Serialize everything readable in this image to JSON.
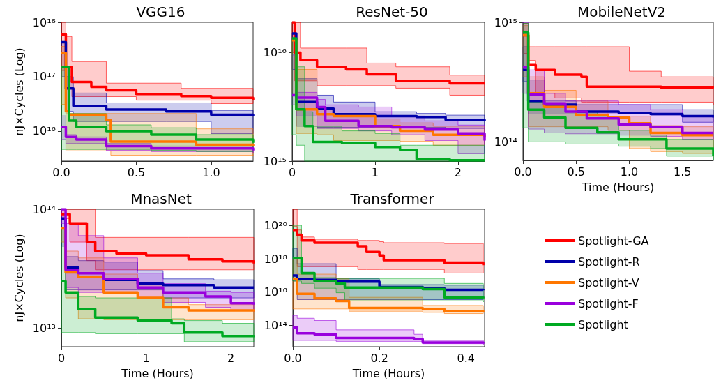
{
  "chart_data": [
    {
      "type": "step",
      "title": "VGG16",
      "ylabel": "nJ×Cycles (Log)",
      "log": true,
      "xlim": [
        0,
        1.28
      ],
      "xticks": [
        {
          "value": 0,
          "label": "0.0"
        },
        {
          "value": 0.5,
          "label": "0.5"
        },
        {
          "value": 1,
          "label": "1.0"
        }
      ],
      "ylim": [
        2800000000000000.0,
        1e+18
      ],
      "yticks": [
        {
          "value": 1e+16,
          "label": "10¹⁶"
        },
        {
          "value": 1e+17,
          "label": "10¹⁷"
        },
        {
          "value": 1e+18,
          "label": "10¹⁸"
        }
      ],
      "series": [
        {
          "color": "#ff0000",
          "x": [
            0,
            0.03,
            0.07,
            0.2,
            0.3,
            0.5,
            0.8,
            1.0,
            1.28
          ],
          "values": [
            6e+17,
            1.5e+17,
            8e+16,
            6.5e+16,
            5.6e+16,
            4.8e+16,
            4.4e+16,
            4.1e+16,
            3.7e+16
          ],
          "upper": [
            1e+18,
            5.5e+17,
            1.9e+17,
            1.9e+17,
            7.6e+16,
            7.6e+16,
            6.1e+16,
            6.1e+16,
            5.8e+16
          ],
          "lower": [
            1.3e+17,
            6.1e+16,
            4.3e+16,
            4.3e+16,
            4.3e+16,
            3.7e+16,
            3.7e+16,
            3.2e+16,
            3.2e+16
          ]
        },
        {
          "color": "#0000aa",
          "x": [
            0,
            0.03,
            0.08,
            0.3,
            0.7,
            1.0,
            1.28
          ],
          "values": [
            4.3e+17,
            6.1e+16,
            2.9e+16,
            2.5e+16,
            2.3e+16,
            2e+16,
            1.9e+16
          ],
          "upper": [
            4.3e+17,
            1e+17,
            5e+16,
            3.3e+16,
            3.3e+16,
            2.4e+16,
            2.4e+16
          ],
          "lower": [
            1e+17,
            2.3e+16,
            1.5e+16,
            1.5e+16,
            1.5e+16,
            9000000000000000.0,
            9000000000000000.0
          ]
        },
        {
          "color": "#ff7700",
          "x": [
            0,
            0.03,
            0.05,
            0.3,
            0.33,
            0.9,
            1.28
          ],
          "values": [
            2.7e+17,
            2.3e+16,
            2e+16,
            1.6e+16,
            6400000000000000.0,
            5600000000000000.0,
            5300000000000000.0
          ],
          "upper": [
            3.6e+17,
            2.1e+16,
            2.1e+16,
            2.1e+16,
            2.1e+16,
            1.1e+16,
            1.1e+16
          ],
          "lower": [
            3.1e+16,
            4300000000000000.0,
            4300000000000000.0,
            4300000000000000.0,
            3600000000000000.0,
            3600000000000000.0,
            3500000000000000.0
          ]
        },
        {
          "color": "#9900dd",
          "x": [
            0,
            0.03,
            0.1,
            0.3,
            0.6,
            1.28
          ],
          "values": [
            1.2e+16,
            7800000000000000.0,
            7000000000000000.0,
            5300000000000000.0,
            4800000000000000.0,
            4400000000000000.0
          ],
          "upper": [
            1.9e+16,
            8600000000000000.0,
            7800000000000000.0,
            5900000000000000.0,
            5300000000000000.0,
            4800000000000000.0
          ],
          "lower": [
            7000000000000000.0,
            5900000000000000.0,
            5900000000000000.0,
            4400000000000000.0,
            4200000000000000.0,
            4000000000000000.0
          ]
        },
        {
          "color": "#00aa22",
          "x": [
            0,
            0.05,
            0.1,
            0.3,
            0.6,
            0.9,
            1.28
          ],
          "values": [
            1.5e+17,
            1.55e+16,
            1.2e+16,
            1e+16,
            8600000000000000.0,
            7000000000000000.0,
            6100000000000000.0
          ],
          "upper": [
            1.55e+17,
            2.1e+16,
            2.1e+16,
            1.3e+16,
            1.15e+16,
            8600000000000000.0,
            7000000000000000.0
          ],
          "lower": [
            4600000000000000.0,
            4600000000000000.0,
            4600000000000000.0,
            4600000000000000.0,
            4400000000000000.0,
            4200000000000000.0,
            4200000000000000.0
          ]
        }
      ]
    },
    {
      "type": "step",
      "title": "ResNet-50",
      "log": true,
      "xlim": [
        0,
        2.32
      ],
      "xticks": [
        0,
        1,
        2
      ],
      "ylim": [
        1000000000000000.0,
        1.9e+16
      ],
      "yticks": [
        {
          "value": 1000000000000000.0,
          "label": "10¹⁵"
        },
        {
          "value": 1e+16,
          "label": "10¹⁶"
        }
      ],
      "series": [
        {
          "color": "#ff0000",
          "x": [
            0,
            0.03,
            0.1,
            0.3,
            0.65,
            0.9,
            1.25,
            1.9,
            2.32
          ],
          "values": [
            1.9e+16,
            1e+16,
            8500000000000000.0,
            7400000000000000.0,
            7000000000000000.0,
            6300000000000000.0,
            5500000000000000.0,
            5200000000000000.0,
            5200000000000000.0
          ],
          "upper": [
            1.9e+16,
            1.9e+16,
            1.1e+16,
            1.1e+16,
            1.1e+16,
            8000000000000000.0,
            7400000000000000.0,
            6200000000000000.0,
            6200000000000000.0
          ],
          "lower": [
            1e+16,
            5500000000000000.0,
            5500000000000000.0,
            4950000000000000.0,
            4950000000000000.0,
            4950000000000000.0,
            4700000000000000.0,
            4050000000000000.0,
            4050000000000000.0
          ]
        },
        {
          "color": "#0000aa",
          "x": [
            0,
            0.05,
            0.3,
            0.5,
            1,
            1.5,
            1.85,
            2.32
          ],
          "values": [
            1.5e+16,
            3500000000000000.0,
            3050000000000000.0,
            2700000000000000.0,
            2600000000000000.0,
            2550000000000000.0,
            2400000000000000.0,
            2350000000000000.0
          ],
          "upper": [
            1.5e+16,
            5750000000000000.0,
            4050000000000000.0,
            3500000000000000.0,
            2850000000000000.0,
            2750000000000000.0,
            2650000000000000.0,
            2650000000000000.0
          ],
          "lower": [
            7000000000000000.0,
            2100000000000000.0,
            2050000000000000.0,
            2050000000000000.0,
            2050000000000000.0,
            2050000000000000.0,
            2000000000000000.0,
            1170000000000000.0
          ]
        },
        {
          "color": "#ff7700",
          "x": [
            0,
            0.05,
            0.3,
            0.5,
            1,
            1.3,
            1.7,
            2.32
          ],
          "values": [
            1.3e+16,
            3000000000000000.0,
            2700000000000000.0,
            2600000000000000.0,
            2100000000000000.0,
            1900000000000000.0,
            1750000000000000.0,
            1650000000000000.0
          ],
          "upper": [
            1.3e+16,
            7000000000000000.0,
            3000000000000000.0,
            2600000000000000.0,
            2450000000000000.0,
            2250000000000000.0,
            2100000000000000.0,
            1900000000000000.0
          ],
          "lower": [
            4200000000000000.0,
            1800000000000000.0,
            1750000000000000.0,
            1550000000000000.0,
            1550000000000000.0,
            1520000000000000.0,
            1400000000000000.0,
            1400000000000000.0
          ]
        },
        {
          "color": "#9900dd",
          "x": [
            0,
            0.05,
            0.3,
            0.4,
            0.8,
            1.2,
            1.6,
            2.0,
            2.32
          ],
          "values": [
            4050000000000000.0,
            3850000000000000.0,
            3150000000000000.0,
            2350000000000000.0,
            2100000000000000.0,
            2050000000000000.0,
            1950000000000000.0,
            1800000000000000.0,
            1550000000000000.0
          ],
          "upper": [
            9500000000000000.0,
            4300000000000000.0,
            3700000000000000.0,
            3300000000000000.0,
            3150000000000000.0,
            2600000000000000.0,
            2350000000000000.0,
            2150000000000000.0,
            2050000000000000.0
          ],
          "lower": [
            3300000000000000.0,
            2600000000000000.0,
            2000000000000000.0,
            2000000000000000.0,
            1900000000000000.0,
            1750000000000000.0,
            1550000000000000.0,
            1170000000000000.0,
            1170000000000000.0
          ]
        },
        {
          "color": "#00aa22",
          "x": [
            0,
            0.05,
            0.15,
            0.25,
            0.6,
            1.0,
            1.3,
            1.5,
            1.9,
            2.32
          ],
          "values": [
            1.35e+16,
            3000000000000000.0,
            2100000000000000.0,
            1500000000000000.0,
            1470000000000000.0,
            1350000000000000.0,
            1270000000000000.0,
            1040000000000000.0,
            1020000000000000.0,
            1020000000000000.0
          ],
          "upper": [
            1.35e+16,
            7400000000000000.0,
            2850000000000000.0,
            2100000000000000.0,
            1900000000000000.0,
            1800000000000000.0,
            1400000000000000.0,
            1400000000000000.0,
            1400000000000000.0,
            1400000000000000.0
          ],
          "lower": [
            1750000000000000.0,
            1400000000000000.0,
            1000000000000000.0,
            1000000000000000.0,
            1000000000000000.0,
            1000000000000000.0,
            1000000000000000.0,
            1000000000000000.0,
            1000000000000000.0,
            1000000000000000.0
          ]
        }
      ]
    },
    {
      "type": "step",
      "title": "MobileNetV2",
      "xlabel": "Time (Hours)",
      "log": true,
      "xlim": [
        0,
        1.79
      ],
      "xticks": [
        {
          "value": 0,
          "label": "0.0"
        },
        {
          "value": 0.5,
          "label": "0.5"
        },
        {
          "value": 1,
          "label": "1.0"
        },
        {
          "value": 1.5,
          "label": "1.5"
        }
      ],
      "ylim": [
        70000000000000.0,
        1000000000000000.0
      ],
      "yticks": [
        {
          "value": 100000000000000.0,
          "label": "10¹⁴"
        },
        {
          "value": 1000000000000000.0,
          "label": "10¹⁵"
        }
      ],
      "series": [
        {
          "color": "#ff0000",
          "x": [
            0,
            0.05,
            0.12,
            0.3,
            0.55,
            0.6,
            1.0,
            1.3,
            1.79
          ],
          "values": [
            780000000000000.0,
            440000000000000.0,
            400000000000000.0,
            365000000000000.0,
            350000000000000.0,
            290000000000000.0,
            290000000000000.0,
            285000000000000.0,
            280000000000000.0
          ],
          "upper": [
            980000000000000.0,
            625000000000000.0,
            625000000000000.0,
            625000000000000.0,
            625000000000000.0,
            625000000000000.0,
            390000000000000.0,
            350000000000000.0,
            350000000000000.0
          ],
          "lower": [
            550000000000000.0,
            480000000000000.0,
            255000000000000.0,
            233000000000000.0,
            215000000000000.0,
            215000000000000.0,
            215000000000000.0,
            215000000000000.0,
            205000000000000.0
          ]
        },
        {
          "color": "#0000aa",
          "x": [
            0,
            0.05,
            0.2,
            0.5,
            0.9,
            1.2,
            1.5,
            1.79
          ],
          "values": [
            400000000000000.0,
            220000000000000.0,
            205000000000000.0,
            179000000000000.0,
            175000000000000.0,
            171000000000000.0,
            164000000000000.0,
            160000000000000.0
          ],
          "upper": [
            625000000000000.0,
            330000000000000.0,
            220000000000000.0,
            205000000000000.0,
            205000000000000.0,
            205000000000000.0,
            186000000000000.0,
            171000000000000.0
          ],
          "lower": [
            320000000000000.0,
            171000000000000.0,
            171000000000000.0,
            171000000000000.0,
            171000000000000.0,
            168000000000000.0,
            146000000000000.0,
            146000000000000.0
          ]
        },
        {
          "color": "#ff7700",
          "x": [
            0,
            0.05,
            0.2,
            0.5,
            0.8,
            1.0,
            1.2,
            1.5,
            1.79
          ],
          "values": [
            780000000000000.0,
            255000000000000.0,
            196000000000000.0,
            167000000000000.0,
            160000000000000.0,
            143000000000000.0,
            119000000000000.0,
            114000000000000.0,
            113000000000000.0
          ],
          "upper": [
            940000000000000.0,
            350000000000000.0,
            270000000000000.0,
            220000000000000.0,
            164000000000000.0,
            164000000000000.0,
            137000000000000.0,
            134000000000000.0,
            134000000000000.0
          ],
          "lower": [
            350000000000000.0,
            134000000000000.0,
            134000000000000.0,
            134000000000000.0,
            125000000000000.0,
            88000000000000.0,
            83000000000000.0,
            80000000000000.0,
            80000000000000.0
          ]
        },
        {
          "color": "#9900dd",
          "x": [
            0,
            0.05,
            0.2,
            0.4,
            0.6,
            0.9,
            1.2,
            1.5,
            1.79
          ],
          "values": [
            420000000000000.0,
            250000000000000.0,
            210000000000000.0,
            179000000000000.0,
            157000000000000.0,
            140000000000000.0,
            133000000000000.0,
            119000000000000.0,
            119000000000000.0
          ],
          "upper": [
            1000000000000000.0,
            400000000000000.0,
            255000000000000.0,
            220000000000000.0,
            220000000000000.0,
            205000000000000.0,
            186000000000000.0,
            164000000000000.0,
            143000000000000.0
          ],
          "lower": [
            255000000000000.0,
            128000000000000.0,
            119000000000000.0,
            117000000000000.0,
            117000000000000.0,
            114000000000000.0,
            111000000000000.0,
            105000000000000.0,
            105000000000000.0
          ]
        },
        {
          "color": "#00aa22",
          "x": [
            0,
            0.05,
            0.2,
            0.4,
            0.7,
            0.9,
            1.2,
            1.35,
            1.79
          ],
          "values": [
            820000000000000.0,
            186000000000000.0,
            160000000000000.0,
            131000000000000.0,
            120000000000000.0,
            105000000000000.0,
            105000000000000.0,
            88000000000000.0,
            76000000000000.0
          ],
          "upper": [
            980000000000000.0,
            215000000000000.0,
            196000000000000.0,
            179000000000000.0,
            164000000000000.0,
            125000000000000.0,
            114000000000000.0,
            105000000000000.0,
            105000000000000.0
          ],
          "lower": [
            131000000000000.0,
            100000000000000.0,
            100000000000000.0,
            96000000000000.0,
            96000000000000.0,
            92000000000000.0,
            88000000000000.0,
            76000000000000.0,
            70000000000000.0
          ]
        }
      ]
    },
    {
      "type": "step",
      "title": "MnasNet",
      "xlabel": "Time (Hours)",
      "ylabel": "nJ×Cycles (Log)",
      "log": true,
      "xlim": [
        0,
        2.27
      ],
      "xticks": [
        0,
        1,
        2
      ],
      "ylim": [
        7000000000000.0,
        100000000000000.0
      ],
      "yticks": [
        {
          "value": 10000000000000.0,
          "label": "10¹³"
        },
        {
          "value": 100000000000000.0,
          "label": "10¹⁴"
        }
      ],
      "series": [
        {
          "color": "#ff0000",
          "x": [
            0,
            0.1,
            0.3,
            0.4,
            0.65,
            1.0,
            1.5,
            1.9,
            2.27
          ],
          "values": [
            91000000000000.0,
            76000000000000.0,
            53000000000000.0,
            44500000000000.0,
            42500000000000.0,
            41000000000000.0,
            38000000000000.0,
            36500000000000.0,
            35000000000000.0
          ],
          "upper": [
            100000000000000.0,
            100000000000000.0,
            100000000000000.0,
            58000000000000.0,
            58000000000000.0,
            58000000000000.0,
            58000000000000.0,
            58000000000000.0,
            58000000000000.0
          ],
          "lower": [
            83500000000000.0,
            53000000000000.0,
            37000000000000.0,
            31000000000000.0,
            31000000000000.0,
            31000000000000.0,
            31000000000000.0,
            31000000000000.0,
            31000000000000.0
          ]
        },
        {
          "color": "#0000aa",
          "x": [
            0,
            0.05,
            0.2,
            0.5,
            0.9,
            1.2,
            1.8,
            2.27
          ],
          "values": [
            83500000000000.0,
            32500000000000.0,
            27000000000000.0,
            25500000000000.0,
            23700000000000.0,
            23000000000000.0,
            22000000000000.0,
            22000000000000.0
          ],
          "upper": [
            91000000000000.0,
            40000000000000.0,
            37000000000000.0,
            36000000000000.0,
            30500000000000.0,
            26000000000000.0,
            25500000000000.0,
            25500000000000.0
          ],
          "lower": [
            49000000000000.0,
            21000000000000.0,
            21000000000000.0,
            21000000000000.0,
            21000000000000.0,
            18000000000000.0,
            18000000000000.0,
            18000000000000.0
          ]
        },
        {
          "color": "#ff7700",
          "x": [
            0,
            0.05,
            0.2,
            0.5,
            0.9,
            1.2,
            1.5,
            2.27
          ],
          "values": [
            69000000000000.0,
            29500000000000.0,
            27000000000000.0,
            20000000000000.0,
            18000000000000.0,
            15000000000000.0,
            14100000000000.0,
            13800000000000.0
          ],
          "upper": [
            69000000000000.0,
            44500000000000.0,
            39000000000000.0,
            28500000000000.0,
            23700000000000.0,
            18000000000000.0,
            15800000000000.0,
            14800000000000.0
          ],
          "lower": [
            53000000000000.0,
            18000000000000.0,
            12000000000000.0,
            11800000000000.0,
            11800000000000.0,
            11800000000000.0,
            11800000000000.0,
            11800000000000.0
          ]
        },
        {
          "color": "#9900dd",
          "x": [
            0,
            0.05,
            0.2,
            0.5,
            0.9,
            1.2,
            1.7,
            2.0,
            2.27
          ],
          "values": [
            100000000000000.0,
            31000000000000.0,
            29000000000000.0,
            26000000000000.0,
            22000000000000.0,
            20000000000000.0,
            18500000000000.0,
            16200000000000.0,
            15800000000000.0
          ],
          "upper": [
            100000000000000.0,
            76000000000000.0,
            60000000000000.0,
            39000000000000.0,
            29000000000000.0,
            23700000000000.0,
            20500000000000.0,
            20000000000000.0,
            19000000000000.0
          ],
          "lower": [
            76000000000000.0,
            22000000000000.0,
            20000000000000.0,
            19500000000000.0,
            18000000000000.0,
            16500000000000.0,
            15000000000000.0,
            14100000000000.0,
            13800000000000.0
          ]
        },
        {
          "color": "#00aa22",
          "x": [
            0,
            0.05,
            0.2,
            0.4,
            0.9,
            1.3,
            1.45,
            1.9,
            2.27
          ],
          "values": [
            24800000000000.0,
            20000000000000.0,
            14500000000000.0,
            12300000000000.0,
            11600000000000.0,
            11000000000000.0,
            9200000000000.0,
            8600000000000.0,
            8400000000000.0
          ],
          "upper": [
            69000000000000.0,
            20000000000000.0,
            18500000000000.0,
            18000000000000.0,
            18000000000000.0,
            12000000000000.0,
            11600000000000.0,
            11000000000000.0,
            10500000000000.0
          ],
          "lower": [
            9200000000000.0,
            9200000000000.0,
            9200000000000.0,
            9000000000000.0,
            9000000000000.0,
            9000000000000.0,
            7700000000000.0,
            7700000000000.0,
            7700000000000.0
          ]
        }
      ]
    },
    {
      "type": "step",
      "title": "Transformer",
      "xlabel": "Time (Hours)",
      "log": true,
      "legend": "right",
      "xlim": [
        0,
        0.443
      ],
      "xticks": [
        {
          "value": 0,
          "label": "0.0"
        },
        {
          "value": 0.2,
          "label": "0.2"
        },
        {
          "value": 0.4,
          "label": "0.4"
        }
      ],
      "ylim": [
        5000000000000.0,
        1e+21
      ],
      "yticks": [
        {
          "value": 100000000000000.0,
          "label": "10¹⁴"
        },
        {
          "value": 1e+16,
          "label": "10¹⁶"
        },
        {
          "value": 1e+18,
          "label": "10¹⁸"
        },
        {
          "value": 1e+20,
          "label": "10²⁰"
        }
      ],
      "series": [
        {
          "name": "Spotlight-GA",
          "color": "#ff0000",
          "x": [
            0,
            0.01,
            0.02,
            0.05,
            0.15,
            0.17,
            0.2,
            0.21,
            0.35,
            0.44
          ],
          "values": [
            5.6e+19,
            2.9e+19,
            1.3e+19,
            9.5e+18,
            5.9e+18,
            2.6e+18,
            1.6e+18,
            8.3e+17,
            6e+17,
            4.2e+17
          ],
          "upper": [
            1e+21,
            5.6e+19,
            2.1e+19,
            1.55e+19,
            1.3e+19,
            1.3e+19,
            1.1e+19,
            9.5e+18,
            8.5e+18,
            8.5e+18
          ],
          "lower": [
            9e+19,
            3.4e+17,
            3.4e+17,
            3.4e+17,
            2.3e+17,
            2.3e+17,
            2.3e+17,
            2.3e+17,
            1.4e+17,
            1.4e+17
          ]
        },
        {
          "name": "Spotlight-R",
          "color": "#0000aa",
          "x": [
            0,
            0.01,
            0.05,
            0.1,
            0.2,
            0.3,
            0.35,
            0.44
          ],
          "values": [
            1e+17,
            6.3e+16,
            5.4e+16,
            4.3e+16,
            2e+16,
            1.7e+16,
            1.35e+16,
            1.25e+16
          ],
          "upper": [
            4.3e+18,
            5.1e+17,
            5.1e+17,
            6.3e+16,
            2.8e+16,
            2.8e+16,
            2.6e+16,
            2.4e+16
          ],
          "lower": [
            4.6e+16,
            3500000000000000.0,
            3500000000000000.0,
            3500000000000000.0,
            3500000000000000.0,
            3500000000000000.0,
            3500000000000000.0,
            3500000000000000.0
          ]
        },
        {
          "name": "Spotlight-V",
          "color": "#ff7700",
          "x": [
            0,
            0.01,
            0.05,
            0.1,
            0.13,
            0.3,
            0.35,
            0.44
          ],
          "values": [
            6.3e+16,
            7800000000000000.0,
            4100000000000000.0,
            2900000000000000.0,
            1100000000000000.0,
            960000000000000.0,
            690000000000000.0,
            590000000000000.0
          ],
          "upper": [
            9.8e+17,
            1.2e+17,
            1.2e+17,
            6.3e+16,
            4800000000000000.0,
            1550000000000000.0,
            1550000000000000.0,
            1100000000000000.0
          ],
          "lower": [
            960000000000000.0,
            960000000000000.0,
            960000000000000.0,
            960000000000000.0,
            690000000000000.0,
            590000000000000.0,
            500000000000000.0,
            500000000000000.0
          ]
        },
        {
          "name": "Spotlight-F",
          "color": "#9900dd",
          "x": [
            0,
            0.01,
            0.05,
            0.1,
            0.28,
            0.3,
            0.44
          ],
          "values": [
            72000000000000.0,
            32000000000000.0,
            28000000000000.0,
            17000000000000.0,
            14500000000000.0,
            8900000000000.0,
            7600000000000.0
          ],
          "upper": [
            390000000000000.0,
            260000000000000.0,
            190000000000000.0,
            52000000000000.0,
            28000000000000.0,
            12000000000000.0,
            8900000000000.0
          ],
          "lower": [
            12000000000000.0,
            12000000000000.0,
            12000000000000.0,
            10500000000000.0,
            10500000000000.0,
            7600000000000.0,
            6300000000000.0
          ]
        },
        {
          "name": "Spotlight",
          "color": "#00aa22",
          "x": [
            0,
            0.02,
            0.05,
            0.1,
            0.12,
            0.3,
            0.35,
            0.44
          ],
          "values": [
            1.15e+18,
            1.4e+17,
            4.6e+16,
            3.3e+16,
            1.85e+16,
            1.5e+16,
            4800000000000000.0,
            4100000000000000.0
          ],
          "upper": [
            1.07e+20,
            1.2e+17,
            7.4e+16,
            6.7e+16,
            6.7e+16,
            6.7e+16,
            3.3e+16,
            1.5e+16
          ],
          "lower": [
            4.6e+16,
            3.3e+16,
            1.7e+16,
            9100000000000000.0,
            2900000000000000.0,
            2900000000000000.0,
            2900000000000000.0,
            2500000000000000.0
          ]
        }
      ]
    }
  ]
}
